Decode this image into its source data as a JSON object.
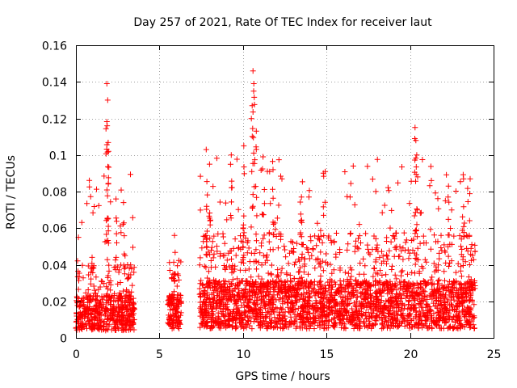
{
  "chart_data": {
    "type": "scatter",
    "title": "Day 257 of 2021, Rate Of TEC Index for receiver laut",
    "xlabel": "GPS time / hours",
    "ylabel": "ROTI / TECUs",
    "xlim": [
      0,
      25
    ],
    "ylim": [
      0,
      0.16
    ],
    "xticks": [
      0,
      5,
      10,
      15,
      20,
      25
    ],
    "xtick_labels": [
      "0",
      "5",
      "10",
      "15",
      "20",
      "25"
    ],
    "yticks": [
      0,
      0.02,
      0.04,
      0.06,
      0.08,
      0.1,
      0.12,
      0.14,
      0.16
    ],
    "ytick_labels": [
      "0",
      "0.02",
      "0.04",
      "0.06",
      "0.08",
      "0.1",
      "0.12",
      "0.14",
      "0.16"
    ],
    "grid": true,
    "marker": "+",
    "series_color": "#ff0000",
    "coverage_segments": [
      {
        "x_start": 0.0,
        "x_end": 3.5,
        "typical_range": [
          0.004,
          0.03
        ],
        "max": 0.14
      },
      {
        "x_start": 5.5,
        "x_end": 6.3,
        "typical_range": [
          0.005,
          0.03
        ],
        "max": 0.056
      },
      {
        "x_start": 7.4,
        "x_end": 23.9,
        "typical_range": [
          0.005,
          0.04
        ],
        "max": 0.146
      }
    ],
    "peaks": [
      {
        "x": 0.15,
        "y": 0.055
      },
      {
        "x": 1.85,
        "y": 0.139
      },
      {
        "x": 1.9,
        "y": 0.13
      },
      {
        "x": 1.87,
        "y": 0.116
      },
      {
        "x": 1.95,
        "y": 0.102
      },
      {
        "x": 2.4,
        "y": 0.076
      },
      {
        "x": 2.85,
        "y": 0.074
      },
      {
        "x": 5.9,
        "y": 0.056
      },
      {
        "x": 7.8,
        "y": 0.103
      },
      {
        "x": 8.0,
        "y": 0.095
      },
      {
        "x": 9.3,
        "y": 0.1
      },
      {
        "x": 10.05,
        "y": 0.105
      },
      {
        "x": 10.6,
        "y": 0.146
      },
      {
        "x": 10.65,
        "y": 0.139
      },
      {
        "x": 10.55,
        "y": 0.127
      },
      {
        "x": 10.8,
        "y": 0.113
      },
      {
        "x": 11.2,
        "y": 0.099
      },
      {
        "x": 11.8,
        "y": 0.092
      },
      {
        "x": 13.5,
        "y": 0.077
      },
      {
        "x": 20.3,
        "y": 0.115
      },
      {
        "x": 20.35,
        "y": 0.108
      },
      {
        "x": 20.4,
        "y": 0.1
      },
      {
        "x": 22.3,
        "y": 0.083
      },
      {
        "x": 23.2,
        "y": 0.087
      },
      {
        "x": 23.6,
        "y": 0.087
      }
    ]
  }
}
